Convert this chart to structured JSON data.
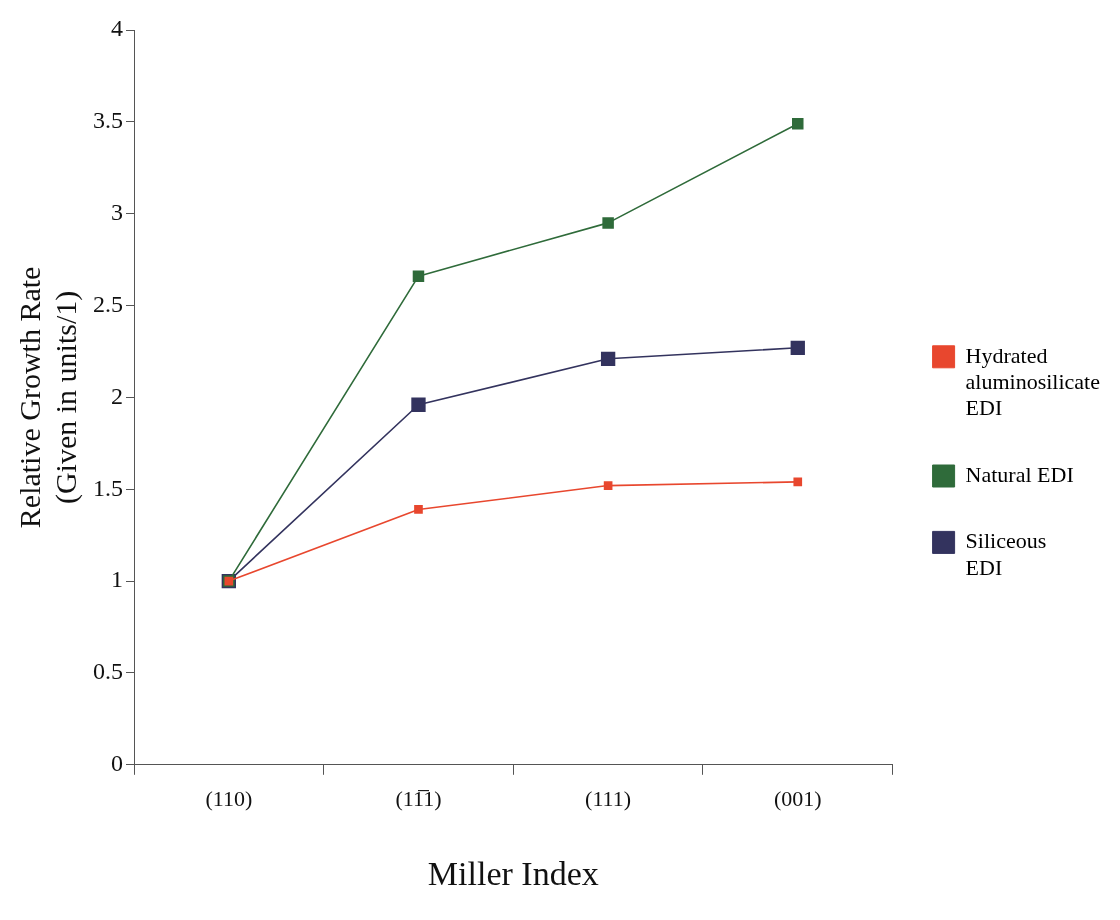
{
  "chart_data": {
    "type": "line",
    "xlabel": "Miller Index",
    "ylabel": "Relative Growth Rate\n(Given in units/1)",
    "categories": [
      "(110)",
      "(11̅1)",
      "(111)",
      "(001)"
    ],
    "series": [
      {
        "name": "Hydrated aluminosilicate EDI",
        "color": "#e8472e",
        "values": [
          1,
          1.39,
          1.52,
          1.54
        ]
      },
      {
        "name": "Natural EDI",
        "color": "#2f6b3a",
        "values": [
          1,
          2.66,
          2.95,
          3.49
        ]
      },
      {
        "name": "Siliceous EDI",
        "color": "#33335e",
        "values": [
          1,
          1.96,
          2.21,
          2.27
        ]
      }
    ],
    "ylim": [
      0,
      4
    ],
    "yticks": [
      0,
      0.5,
      1,
      1.5,
      2,
      2.5,
      3,
      3.5,
      4
    ],
    "grid": false,
    "legend": "right",
    "marker": "square",
    "line_style": "solid"
  }
}
